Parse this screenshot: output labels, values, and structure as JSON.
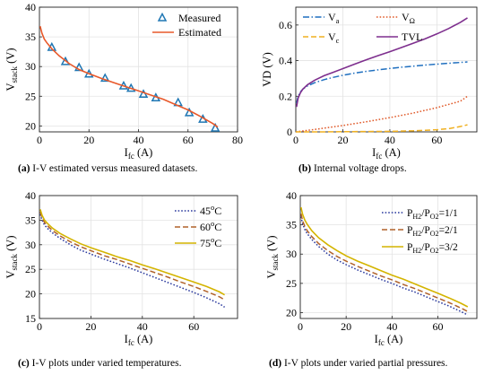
{
  "panels": [
    {
      "id": "a",
      "caption_letter": "(a)",
      "caption_text": "I-V estimated versus measured datasets.",
      "chart_data": {
        "type": "line",
        "xlabel_main": "I",
        "xlabel_sub": "fc",
        "xlabel_unit": " (A)",
        "ylabel_main": "V",
        "ylabel_sub": "stack",
        "ylabel_unit": " (V)",
        "xlim": [
          0,
          80
        ],
        "ylim": [
          19,
          40
        ],
        "xticks": [
          "0",
          "20",
          "40",
          "60",
          "80"
        ],
        "yticks": [
          "20",
          "25",
          "30",
          "35",
          "40"
        ],
        "grid": true,
        "legend_placement": "top-right",
        "series": [
          {
            "name": "Measured",
            "style": "triangle-markers",
            "color": "#1f77b4",
            "x": [
              5,
              10.5,
              16,
              20,
              26.5,
              34,
              37,
              42,
              47,
              56,
              60.5,
              66,
              71
            ],
            "y": [
              33.2,
              30.8,
              29.8,
              28.7,
              28.0,
              26.7,
              26.3,
              25.3,
              24.7,
              23.9,
              22.2,
              21.1,
              19.6
            ]
          },
          {
            "name": "Estimated",
            "style": "solid",
            "color": "#e8582a",
            "x": [
              0.3,
              1,
              2,
              3,
              5,
              8,
              12,
              16,
              20,
              25,
              30,
              35,
              40,
              45,
              50,
              55,
              60,
              65,
              70,
              72
            ],
            "y": [
              36.8,
              35.6,
              34.6,
              34.0,
              33.0,
              31.8,
              30.5,
              29.5,
              28.8,
              28.0,
              27.3,
              26.6,
              25.9,
              25.2,
              24.5,
              23.6,
              22.7,
              21.6,
              20.4,
              19.8
            ]
          }
        ]
      }
    },
    {
      "id": "b",
      "caption_letter": "(b)",
      "caption_text": "Internal voltage drops.",
      "chart_data": {
        "type": "line",
        "xlabel_main": "I",
        "xlabel_sub": "fc",
        "xlabel_unit": " (A)",
        "ylabel_main": "VD (V)",
        "ylabel_sub": "",
        "ylabel_unit": "",
        "xlim": [
          0,
          77
        ],
        "ylim": [
          0,
          0.7
        ],
        "xticks": [
          "0",
          "20",
          "40",
          "60"
        ],
        "yticks": [
          "0",
          "0.2",
          "0.4",
          "0.6"
        ],
        "grid": true,
        "legend_placement": "top",
        "series": [
          {
            "name": "V",
            "sub": "a",
            "style": "dashdot",
            "color": "#1f6fbf",
            "x": [
              0.3,
              1,
              2,
              3,
              5,
              8,
              12,
              16,
              20,
              25,
              30,
              35,
              40,
              45,
              50,
              55,
              60,
              65,
              70,
              73
            ],
            "y": [
              0.16,
              0.2,
              0.225,
              0.24,
              0.258,
              0.276,
              0.293,
              0.306,
              0.318,
              0.33,
              0.34,
              0.348,
              0.356,
              0.363,
              0.369,
              0.375,
              0.38,
              0.385,
              0.39,
              0.393
            ]
          },
          {
            "name": "V",
            "sub": "Ω",
            "style": "dotted",
            "color": "#e05a2a",
            "x": [
              0,
              10,
              20,
              30,
              40,
              50,
              60,
              70,
              73
            ],
            "y": [
              0.0,
              0.017,
              0.036,
              0.057,
              0.08,
              0.106,
              0.136,
              0.172,
              0.2
            ]
          },
          {
            "name": "V",
            "sub": "c",
            "style": "dashed",
            "color": "#f0b020",
            "x": [
              0,
              10,
              20,
              30,
              40,
              50,
              60,
              65,
              70,
              73
            ],
            "y": [
              0.0,
              0.0,
              0.001,
              0.002,
              0.003,
              0.006,
              0.012,
              0.018,
              0.03,
              0.04
            ]
          },
          {
            "name": "TVL",
            "sub": "",
            "style": "solid",
            "color": "#7e2f8e",
            "x": [
              0.3,
              1,
              2,
              3,
              5,
              8,
              12,
              16,
              20,
              25,
              30,
              35,
              40,
              45,
              50,
              55,
              60,
              65,
              70,
              73
            ],
            "y": [
              0.14,
              0.19,
              0.22,
              0.24,
              0.265,
              0.29,
              0.315,
              0.335,
              0.355,
              0.38,
              0.405,
              0.428,
              0.45,
              0.474,
              0.498,
              0.522,
              0.55,
              0.58,
              0.615,
              0.64
            ]
          }
        ]
      }
    },
    {
      "id": "c",
      "caption_letter": "(c)",
      "caption_text": "I-V plots under varied temperatures.",
      "chart_data": {
        "type": "line",
        "xlabel_main": "I",
        "xlabel_sub": "fc",
        "xlabel_unit": " (A)",
        "ylabel_main": "V",
        "ylabel_sub": "stack",
        "ylabel_unit": " (V)",
        "xlim": [
          0,
          77
        ],
        "ylim": [
          15,
          40
        ],
        "xticks": [
          "0",
          "20",
          "40",
          "60"
        ],
        "yticks": [
          "15",
          "20",
          "25",
          "30",
          "35",
          "40"
        ],
        "grid": true,
        "legend_placement": "top-right",
        "series": [
          {
            "name": "45°C",
            "style": "dotted",
            "color": "#2b3a9e",
            "x": [
              0.3,
              1,
              2,
              3,
              5,
              8,
              12,
              16,
              20,
              25,
              30,
              35,
              40,
              45,
              50,
              55,
              60,
              65,
              70,
              72
            ],
            "y": [
              36.2,
              35.0,
              34.0,
              33.4,
              32.4,
              31.3,
              30.0,
              28.9,
              28.1,
              27.1,
              26.2,
              25.3,
              24.3,
              23.3,
              22.3,
              21.3,
              20.3,
              19.2,
              18.0,
              17.3
            ]
          },
          {
            "name": "60°C",
            "style": "dashed",
            "color": "#b0622a",
            "x": [
              0.3,
              1,
              2,
              3,
              5,
              8,
              12,
              16,
              20,
              25,
              30,
              35,
              40,
              45,
              50,
              55,
              60,
              65,
              70,
              72
            ],
            "y": [
              36.7,
              35.5,
              34.5,
              33.9,
              32.9,
              31.8,
              30.6,
              29.6,
              28.8,
              27.8,
              27.0,
              26.1,
              25.2,
              24.3,
              23.4,
              22.4,
              21.5,
              20.5,
              19.4,
              18.8
            ]
          },
          {
            "name": "75°C",
            "style": "solid",
            "color": "#d4b400",
            "x": [
              0.3,
              1,
              2,
              3,
              5,
              8,
              12,
              16,
              20,
              25,
              30,
              35,
              40,
              45,
              50,
              55,
              60,
              65,
              70,
              72
            ],
            "y": [
              37.2,
              36.0,
              35.0,
              34.4,
              33.4,
              32.3,
              31.2,
              30.2,
              29.4,
              28.5,
              27.6,
              26.8,
              25.9,
              25.1,
              24.2,
              23.3,
              22.4,
              21.5,
              20.4,
              19.8
            ]
          }
        ]
      }
    },
    {
      "id": "d",
      "caption_letter": "(d)",
      "caption_text": "I-V plots under varied partial pressures.",
      "chart_data": {
        "type": "line",
        "xlabel_main": "I",
        "xlabel_sub": "fc",
        "xlabel_unit": " (A)",
        "ylabel_main": "V",
        "ylabel_sub": "stack",
        "ylabel_unit": " (V)",
        "xlim": [
          0,
          77
        ],
        "ylim": [
          19,
          40
        ],
        "xticks": [
          "0",
          "20",
          "40",
          "60"
        ],
        "yticks": [
          "20",
          "25",
          "30",
          "35",
          "40"
        ],
        "grid": true,
        "legend_placement": "top-right",
        "series": [
          {
            "name": "P",
            "sub1": "H2",
            "mid": "/P",
            "sub2": "O2",
            "tail": "=1/1",
            "style": "dotted",
            "color": "#2b3a9e",
            "x": [
              0.3,
              1,
              2,
              3,
              5,
              8,
              12,
              16,
              20,
              25,
              30,
              35,
              40,
              45,
              50,
              55,
              60,
              65,
              70,
              73
            ],
            "y": [
              36.4,
              35.2,
              34.2,
              33.5,
              32.5,
              31.3,
              30.0,
              29.0,
              28.2,
              27.3,
              26.5,
              25.7,
              25.0,
              24.2,
              23.5,
              22.7,
              21.9,
              21.1,
              20.2,
              19.6
            ]
          },
          {
            "name": "P",
            "sub1": "H2",
            "mid": "/P",
            "sub2": "O2",
            "tail": "=2/1",
            "style": "dashed",
            "color": "#b0622a",
            "x": [
              0.3,
              1,
              2,
              3,
              5,
              8,
              12,
              16,
              20,
              25,
              30,
              35,
              40,
              45,
              50,
              55,
              60,
              65,
              70,
              73
            ],
            "y": [
              36.9,
              35.7,
              34.7,
              34.0,
              33.0,
              31.8,
              30.6,
              29.6,
              28.8,
              27.9,
              27.1,
              26.3,
              25.6,
              24.8,
              24.1,
              23.3,
              22.5,
              21.7,
              20.8,
              20.2
            ]
          },
          {
            "name": "P",
            "sub1": "H2",
            "mid": "/P",
            "sub2": "O2",
            "tail": "=3/2",
            "style": "solid",
            "color": "#d4b400",
            "x": [
              0.3,
              1,
              2,
              3,
              5,
              8,
              12,
              16,
              20,
              25,
              30,
              35,
              40,
              45,
              50,
              55,
              60,
              65,
              70,
              73
            ],
            "y": [
              38.0,
              36.8,
              35.8,
              35.1,
              34.0,
              32.8,
              31.6,
              30.6,
              29.7,
              28.8,
              28.0,
              27.2,
              26.4,
              25.7,
              24.9,
              24.1,
              23.3,
              22.5,
              21.6,
              21.0
            ]
          }
        ]
      }
    }
  ]
}
